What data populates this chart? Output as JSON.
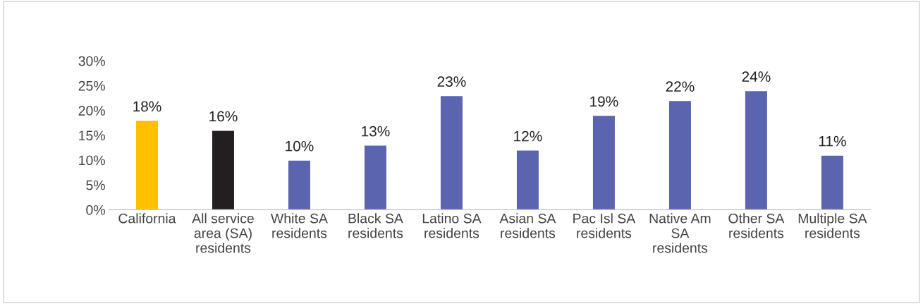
{
  "chart_data": {
    "type": "bar",
    "categories": [
      "California",
      "All service area (SA) residents",
      "White SA residents",
      "Black SA residents",
      "Latino SA residents",
      "Asian SA residents",
      "Pac Isl SA residents",
      "Native Am SA residents",
      "Other SA residents",
      "Multiple SA residents"
    ],
    "values": [
      18,
      16,
      10,
      13,
      23,
      12,
      19,
      22,
      24,
      11
    ],
    "colors": [
      "#ffc000",
      "#231f20",
      "#5b64ae",
      "#5b64ae",
      "#5b64ae",
      "#5b64ae",
      "#5b64ae",
      "#5b64ae",
      "#5b64ae",
      "#5b64ae"
    ],
    "value_labels": [
      "18%",
      "16%",
      "10%",
      "13%",
      "23%",
      "12%",
      "19%",
      "22%",
      "24%",
      "11%"
    ],
    "ylim": [
      0,
      30
    ],
    "yticks": [
      {
        "value": 0,
        "label": "0%"
      },
      {
        "value": 5,
        "label": "5%"
      },
      {
        "value": 10,
        "label": "10%"
      },
      {
        "value": 15,
        "label": "15%"
      },
      {
        "value": 20,
        "label": "20%"
      },
      {
        "value": 25,
        "label": "25%"
      },
      {
        "value": 30,
        "label": "30%"
      }
    ],
    "grid": false,
    "legend": false
  }
}
